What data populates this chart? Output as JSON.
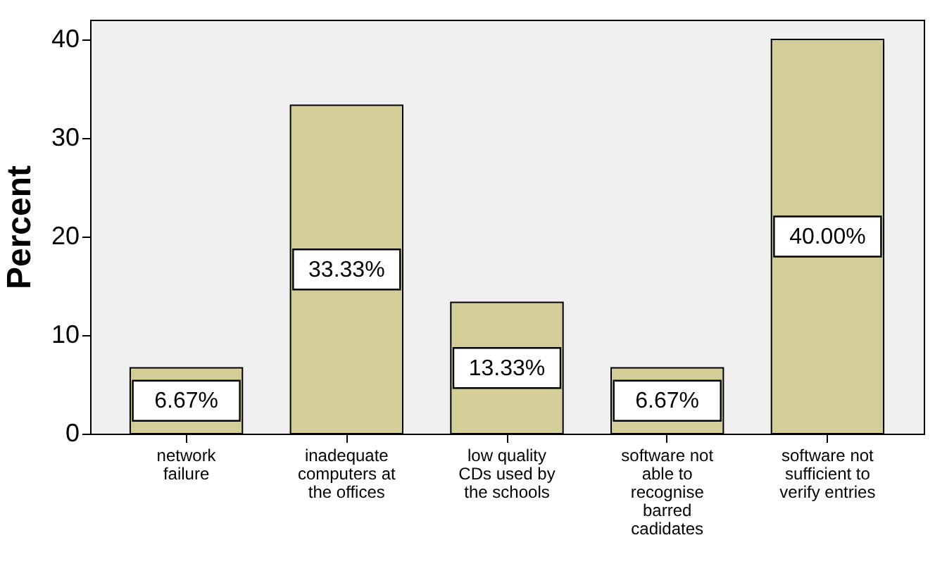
{
  "chart_data": {
    "type": "bar",
    "ylabel": "Percent",
    "categories": [
      "network failure",
      "inadequate computers at the offices",
      "low quality CDs used by the schools",
      "software not able to recognise barred cadidates",
      "software not sufficient to verify entries"
    ],
    "values": [
      6.67,
      33.33,
      13.33,
      6.67,
      40.0
    ],
    "value_labels": [
      "6.67%",
      "33.33%",
      "13.33%",
      "6.67%",
      "40.00%"
    ],
    "color": "#d3ce97",
    "ylim": [
      0,
      42
    ],
    "yticks": [
      0,
      10,
      20,
      30,
      40
    ],
    "grid": false
  }
}
